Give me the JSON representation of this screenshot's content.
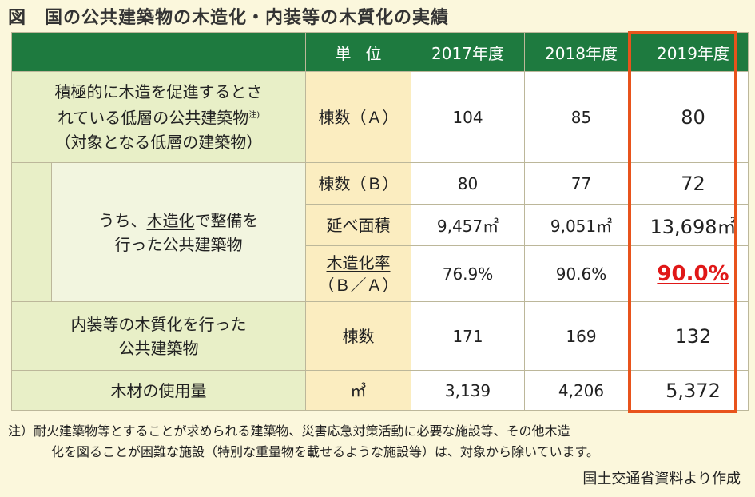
{
  "title": "図　国の公共建築物の木造化・内装等の木質化の実績",
  "header": {
    "unit": "単位",
    "years": [
      "2017年度",
      "2018年度",
      "2019年度"
    ]
  },
  "rows": {
    "target": {
      "label_line1": "積極的に木造を促進するとさ",
      "label_line2": "れている低層の公共建築物",
      "label_note": "注)",
      "label_line3": "（対象となる低層の建築物）",
      "unit": "棟数（Ａ）",
      "values": [
        "104",
        "85",
        "80"
      ]
    },
    "wooden_sub": {
      "label_prefix": "うち、",
      "label_underlined": "木造化",
      "label_suffix": "で整備を",
      "label_line2": "行った公共建築物"
    },
    "count_b": {
      "unit": "棟数（Ｂ）",
      "values": [
        "80",
        "77",
        "72"
      ]
    },
    "area": {
      "unit": "延べ面積",
      "values": [
        "9,457㎡",
        "9,051㎡",
        "13,698㎡"
      ]
    },
    "rate": {
      "unit_line1": "木造化率",
      "unit_line2": "（Ｂ／Ａ）",
      "values": [
        "76.9%",
        "90.6%",
        "90.0%"
      ]
    },
    "interior": {
      "label_line1": "内装等の木質化を行った",
      "label_line2": "公共建築物",
      "unit": "棟数",
      "values": [
        "171",
        "169",
        "132"
      ]
    },
    "timber": {
      "label": "木材の使用量",
      "unit": "㎥",
      "values": [
        "3,139",
        "4,206",
        "5,372"
      ]
    }
  },
  "note": {
    "line1": "注）耐火建築物等とすることが求められる建築物、災害応急対策活動に必要な施設等、その他木造",
    "line2": "化を図ることが困難な施設（特別な重量物を載せるような施設等）は、対象から除いています。"
  },
  "source": "国土交通省資料より作成",
  "colors": {
    "header_bg": "#1e7a3f",
    "highlight_border": "#e8531c",
    "rate_2019": "#e01818"
  }
}
